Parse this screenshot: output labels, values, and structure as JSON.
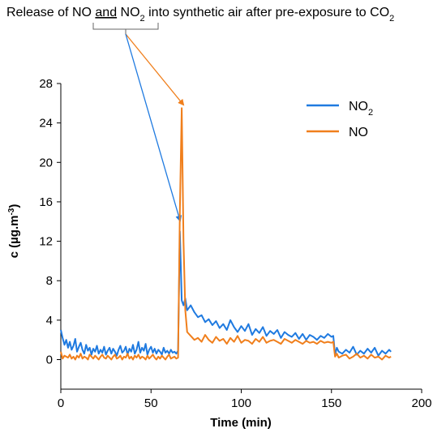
{
  "chart_data": {
    "type": "line",
    "title": "",
    "annotation": {
      "prefix": "Release of NO ",
      "and": "and",
      "mid": " NO",
      "mid_sub": "2",
      "suffix": " into synthetic air after pre-exposure to CO",
      "suffix_sub": "2"
    },
    "xlabel": "Time (min)",
    "ylabel": {
      "main": "c (µg.m",
      "sup": "-3",
      "close": ")"
    },
    "xlim": [
      0,
      200
    ],
    "ylim": [
      -3,
      28
    ],
    "xticks": [
      "0",
      "50",
      "100",
      "150",
      "200"
    ],
    "yticks": [
      "0",
      "4",
      "8",
      "12",
      "16",
      "20",
      "24",
      "28"
    ],
    "legend": {
      "placement": "top-right",
      "entries": [
        {
          "label": "NO",
          "sub": "2",
          "series": 0
        },
        {
          "label": "NO",
          "sub": "",
          "series": 1
        }
      ]
    },
    "colors": {
      "no2": "#1f7ae0",
      "no": "#f07f1c"
    },
    "series": [
      {
        "name": "NO2",
        "x": [
          0,
          1,
          2,
          3,
          4,
          5,
          6,
          7,
          8,
          9,
          10,
          11,
          12,
          13,
          14,
          15,
          16,
          17,
          18,
          19,
          20,
          21,
          22,
          23,
          24,
          25,
          26,
          27,
          28,
          29,
          30,
          31,
          32,
          33,
          34,
          35,
          36,
          37,
          38,
          39,
          40,
          41,
          42,
          43,
          44,
          45,
          46,
          47,
          48,
          49,
          50,
          51,
          52,
          53,
          54,
          55,
          56,
          57,
          58,
          59,
          60,
          61,
          62,
          63,
          64,
          65,
          66,
          67,
          68,
          69,
          70,
          72,
          74,
          76,
          78,
          80,
          82,
          84,
          86,
          88,
          90,
          92,
          94,
          96,
          98,
          100,
          102,
          104,
          106,
          108,
          110,
          112,
          114,
          116,
          118,
          120,
          122,
          124,
          126,
          128,
          130,
          132,
          134,
          136,
          138,
          140,
          142,
          144,
          146,
          148,
          150,
          151,
          152,
          153,
          154,
          156,
          158,
          160,
          162,
          164,
          166,
          168,
          170,
          172,
          174,
          176,
          178,
          180,
          182,
          183
        ],
        "values": [
          3.0,
          2.2,
          1.5,
          2.0,
          1.2,
          1.8,
          1.0,
          1.4,
          2.1,
          0.8,
          1.3,
          1.7,
          1.0,
          0.6,
          1.5,
          0.9,
          1.2,
          0.5,
          1.1,
          0.8,
          1.4,
          0.6,
          1.0,
          0.7,
          1.3,
          0.5,
          0.9,
          1.2,
          0.6,
          1.1,
          0.8,
          0.4,
          1.0,
          1.4,
          0.7,
          0.9,
          1.3,
          0.5,
          1.1,
          0.8,
          1.5,
          0.6,
          1.0,
          1.8,
          0.7,
          1.2,
          0.9,
          1.6,
          0.5,
          1.0,
          1.3,
          0.7,
          1.1,
          0.6,
          1.0,
          0.8,
          0.5,
          1.2,
          0.7,
          0.9,
          0.6,
          1.0,
          0.7,
          0.8,
          0.6,
          0.9,
          13.0,
          6.0,
          5.5,
          6.2,
          5.0,
          5.5,
          4.8,
          4.3,
          4.5,
          3.8,
          4.1,
          3.5,
          3.9,
          3.2,
          3.6,
          3.0,
          4.0,
          3.3,
          2.8,
          3.4,
          2.9,
          3.6,
          2.5,
          3.1,
          2.7,
          3.3,
          2.4,
          2.9,
          2.6,
          3.0,
          2.2,
          2.8,
          2.5,
          2.3,
          2.7,
          2.1,
          2.6,
          2.0,
          2.5,
          2.3,
          2.0,
          2.4,
          2.2,
          2.6,
          2.3,
          2.4,
          0.5,
          1.2,
          0.8,
          0.6,
          1.0,
          0.7,
          1.3,
          0.5,
          0.9,
          0.6,
          1.1,
          0.7,
          1.2,
          0.4,
          0.9,
          0.6,
          1.0,
          0.8
        ]
      },
      {
        "name": "NO",
        "x": [
          0,
          1,
          2,
          3,
          4,
          5,
          6,
          7,
          8,
          9,
          10,
          11,
          12,
          13,
          14,
          15,
          16,
          17,
          18,
          19,
          20,
          21,
          22,
          23,
          24,
          25,
          26,
          27,
          28,
          29,
          30,
          31,
          32,
          33,
          34,
          35,
          36,
          37,
          38,
          39,
          40,
          41,
          42,
          43,
          44,
          45,
          46,
          47,
          48,
          49,
          50,
          51,
          52,
          53,
          54,
          55,
          56,
          57,
          58,
          59,
          60,
          61,
          62,
          63,
          64,
          65,
          66,
          67,
          68,
          69,
          70,
          72,
          74,
          76,
          78,
          80,
          82,
          84,
          86,
          88,
          90,
          92,
          94,
          96,
          98,
          100,
          102,
          104,
          106,
          108,
          110,
          112,
          114,
          116,
          118,
          120,
          122,
          124,
          126,
          128,
          130,
          132,
          134,
          136,
          138,
          140,
          142,
          144,
          146,
          148,
          150,
          151,
          152,
          153,
          154,
          156,
          158,
          160,
          162,
          164,
          166,
          168,
          170,
          172,
          174,
          176,
          178,
          180,
          182,
          183
        ],
        "values": [
          0.8,
          0.1,
          0.4,
          0.3,
          0.2,
          0.5,
          0.1,
          0.3,
          0.0,
          0.4,
          0.2,
          0.6,
          0.1,
          0.3,
          0.2,
          0.0,
          0.5,
          0.3,
          0.1,
          0.4,
          0.2,
          0.0,
          0.3,
          0.5,
          0.2,
          0.1,
          0.4,
          0.2,
          0.0,
          0.3,
          0.5,
          0.1,
          0.2,
          0.4,
          0.0,
          0.3,
          0.2,
          0.6,
          0.1,
          0.3,
          0.0,
          0.4,
          0.2,
          0.5,
          0.1,
          0.3,
          0.2,
          0.0,
          0.4,
          0.1,
          0.3,
          0.5,
          0.2,
          0.0,
          0.3,
          0.1,
          0.4,
          0.2,
          0.0,
          0.3,
          0.5,
          0.1,
          0.2,
          0.3,
          0.1,
          0.2,
          15.0,
          25.5,
          12.0,
          5.0,
          2.8,
          2.4,
          2.0,
          2.2,
          1.8,
          2.5,
          2.0,
          1.7,
          2.3,
          1.9,
          2.1,
          1.6,
          2.2,
          1.8,
          2.4,
          1.7,
          2.0,
          1.9,
          1.6,
          2.1,
          1.8,
          2.3,
          1.7,
          1.9,
          2.0,
          1.8,
          1.6,
          2.1,
          1.9,
          1.7,
          2.0,
          1.8,
          1.6,
          1.9,
          1.7,
          1.8,
          1.6,
          1.9,
          1.7,
          1.8,
          1.7,
          1.8,
          0.3,
          0.6,
          0.2,
          0.4,
          0.5,
          0.1,
          0.3,
          0.6,
          0.2,
          0.4,
          0.1,
          0.5,
          0.2,
          0.3,
          0.0,
          0.4,
          0.2,
          0.3
        ]
      }
    ]
  }
}
